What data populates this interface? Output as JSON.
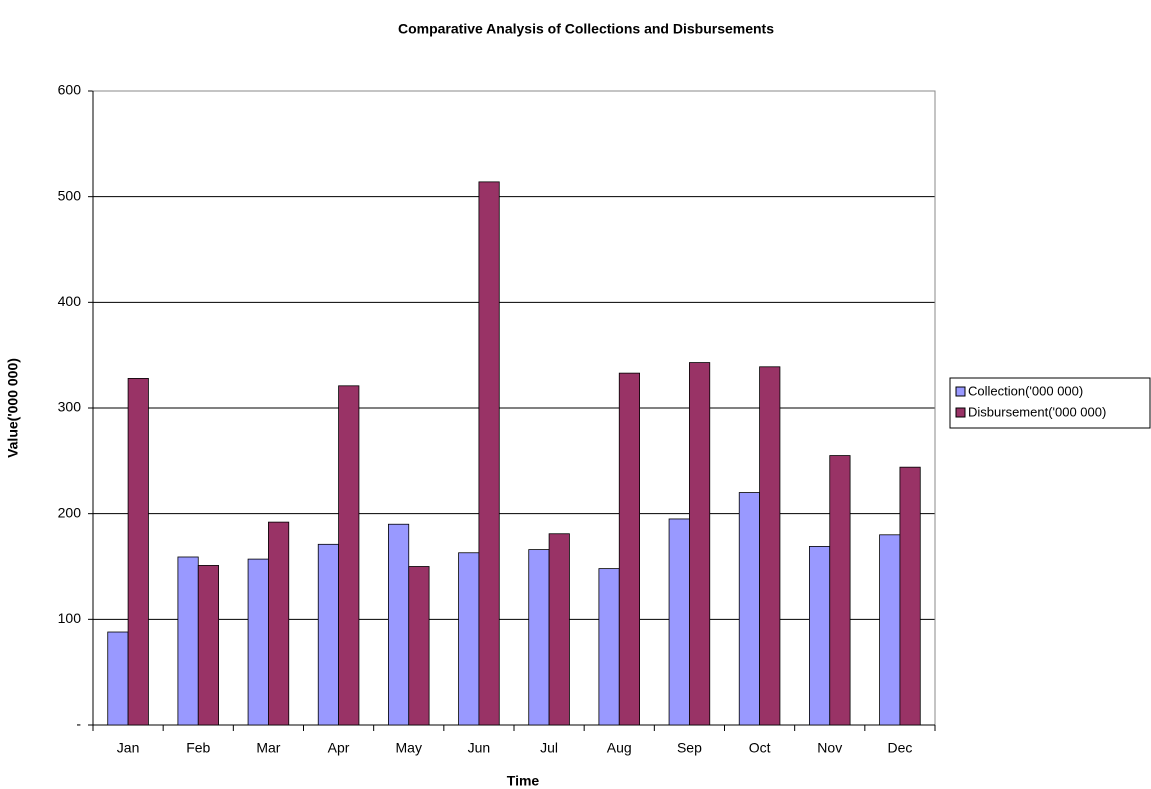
{
  "chart_data": {
    "type": "bar",
    "title": "Comparative Analysis of Collections and Disbursements",
    "x_label": "Time",
    "y_label": "Value('000 000)",
    "categories": [
      "Jan",
      "Feb",
      "Mar",
      "Apr",
      "May",
      "Jun",
      "Jul",
      "Aug",
      "Sep",
      "Oct",
      "Nov",
      "Dec"
    ],
    "series": [
      {
        "name": "Collection('000 000)",
        "color": "#9999ff",
        "values": [
          88,
          159,
          157,
          171,
          190,
          163,
          166,
          148,
          195,
          220,
          169,
          180
        ]
      },
      {
        "name": "Disbursement('000 000)",
        "color": "#993366",
        "values": [
          328,
          151,
          192,
          321,
          150,
          514,
          181,
          333,
          343,
          339,
          255,
          244
        ]
      }
    ],
    "ylim": [
      0,
      600
    ],
    "yticks": [
      {
        "value": 0,
        "label": "-"
      },
      100,
      200,
      300,
      400,
      500,
      600
    ],
    "grid": true,
    "legend": "right"
  }
}
